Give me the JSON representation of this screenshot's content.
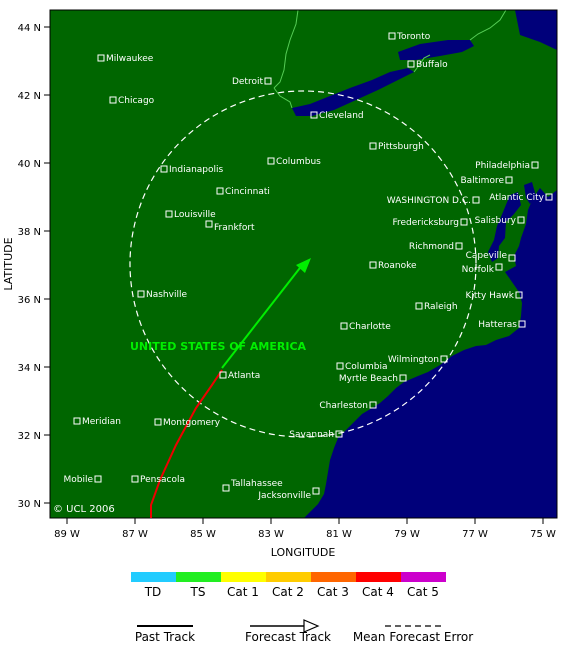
{
  "map": {
    "axis": {
      "xlabel": "LONGITUDE",
      "ylabel": "LATITUDE",
      "x_ticks": [
        "89 W",
        "87 W",
        "85 W",
        "83 W",
        "81 W",
        "79 W",
        "77 W",
        "75 W"
      ],
      "y_ticks": [
        "44 N",
        "42 N",
        "40 N",
        "38 N",
        "36 N",
        "34 N",
        "32 N",
        "30 N"
      ]
    },
    "country_label": "UNITED STATES OF AMERICA",
    "copyright": "© UCL 2006",
    "colors": {
      "land": "#006600",
      "ocean": "#00007a",
      "border": "#55cc55",
      "forecast_track": "#00ee00",
      "past_track": "#ee0000",
      "error_circle": "#ffffff"
    },
    "cities": [
      {
        "name": "Toronto"
      },
      {
        "name": "Milwaukee"
      },
      {
        "name": "Buffalo"
      },
      {
        "name": "Detroit"
      },
      {
        "name": "Chicago"
      },
      {
        "name": "Cleveland"
      },
      {
        "name": "Pittsburgh"
      },
      {
        "name": "Columbus"
      },
      {
        "name": "Philadelphia"
      },
      {
        "name": "Indianapolis"
      },
      {
        "name": "Baltimore"
      },
      {
        "name": "Cincinnati"
      },
      {
        "name": "WASHINGTON D.C."
      },
      {
        "name": "Atlantic City"
      },
      {
        "name": "Louisville"
      },
      {
        "name": "Frankfort"
      },
      {
        "name": "Fredericksburg"
      },
      {
        "name": "Salisbury"
      },
      {
        "name": "Richmond"
      },
      {
        "name": "Capeville"
      },
      {
        "name": "Norfolk"
      },
      {
        "name": "Roanoke"
      },
      {
        "name": "Nashville"
      },
      {
        "name": "Kitty Hawk"
      },
      {
        "name": "Raleigh"
      },
      {
        "name": "Charlotte"
      },
      {
        "name": "Hatteras"
      },
      {
        "name": "Wilmington"
      },
      {
        "name": "Columbia"
      },
      {
        "name": "Atlanta"
      },
      {
        "name": "Myrtle Beach"
      },
      {
        "name": "Charleston"
      },
      {
        "name": "Meridian"
      },
      {
        "name": "Montgomery"
      },
      {
        "name": "Savannah"
      },
      {
        "name": "Mobile"
      },
      {
        "name": "Pensacola"
      },
      {
        "name": "Tallahassee"
      },
      {
        "name": "Jacksonville"
      }
    ]
  },
  "legend": {
    "categories": [
      {
        "label": "TD",
        "color": "#22ccff"
      },
      {
        "label": "TS",
        "color": "#22ee22"
      },
      {
        "label": "Cat 1",
        "color": "#ffff00"
      },
      {
        "label": "Cat 2",
        "color": "#ffcc00"
      },
      {
        "label": "Cat 3",
        "color": "#ff6600"
      },
      {
        "label": "Cat 4",
        "color": "#ff0000"
      },
      {
        "label": "Cat 5",
        "color": "#cc00cc"
      }
    ],
    "past_track": "Past Track",
    "forecast_track": "Forecast Track",
    "mean_error": "Mean Forecast Error"
  }
}
